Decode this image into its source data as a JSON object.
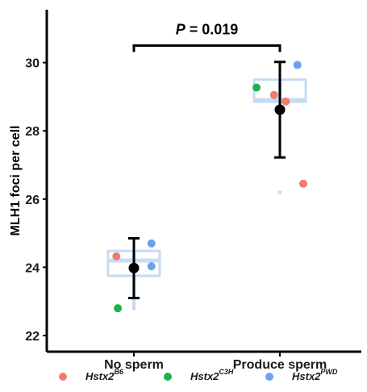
{
  "chart_data": {
    "type": "scatter",
    "title": "",
    "xlabel": "",
    "ylabel": "MLH1 foci per cell",
    "ylim": [
      21.6,
      31.5
    ],
    "yticks": [
      22,
      24,
      26,
      28,
      30
    ],
    "ytick_labels": [
      "22",
      "24",
      "26",
      "28",
      "30"
    ],
    "categories": [
      "No sperm",
      "Produce sperm"
    ],
    "grid": false,
    "legend_position": "bottom",
    "annotation": {
      "label": "P = 0.019",
      "between": [
        "No sperm",
        "Produce sperm"
      ],
      "y": 30.5
    },
    "boxes": [
      {
        "category": "No sperm",
        "q1": 23.75,
        "median": 24.2,
        "q3": 24.48,
        "whisker_low": 22.75,
        "whisker_high": 24.48
      },
      {
        "category": "Produce sperm",
        "q1": 28.85,
        "median": 28.9,
        "q3": 29.5,
        "whisker_low": 28.85,
        "whisker_high": 29.5,
        "outliers": [
          26.2
        ]
      }
    ],
    "summary": [
      {
        "category": "No sperm",
        "mean": 23.98,
        "lower": 23.1,
        "upper": 24.85
      },
      {
        "category": "Produce sperm",
        "mean": 28.62,
        "lower": 27.22,
        "upper": 30.02
      }
    ],
    "series": [
      {
        "name": "Hstx2",
        "sup": "B6",
        "color": "#f07b72",
        "points": [
          {
            "category": "No sperm",
            "y": 24.32,
            "offset": -0.12
          },
          {
            "category": "Produce sperm",
            "y": 29.05,
            "offset": -0.04
          },
          {
            "category": "Produce sperm",
            "y": 28.86,
            "offset": 0.04
          },
          {
            "category": "Produce sperm",
            "y": 26.45,
            "offset": 0.16
          }
        ]
      },
      {
        "name": "Hstx2",
        "sup": "C3H",
        "color": "#1eb34a",
        "points": [
          {
            "category": "No sperm",
            "y": 22.8,
            "offset": -0.11
          },
          {
            "category": "Produce sperm",
            "y": 29.27,
            "offset": -0.16
          }
        ]
      },
      {
        "name": "Hstx2",
        "sup": "PWD",
        "color": "#6aa1ef",
        "points": [
          {
            "category": "No sperm",
            "y": 24.7,
            "offset": 0.12
          },
          {
            "category": "No sperm",
            "y": 24.03,
            "offset": 0.12
          },
          {
            "category": "Produce sperm",
            "y": 29.93,
            "offset": 0.12
          }
        ]
      }
    ]
  }
}
